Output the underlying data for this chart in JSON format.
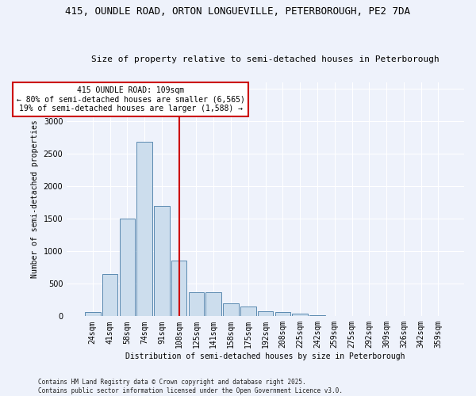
{
  "title_line1": "415, OUNDLE ROAD, ORTON LONGUEVILLE, PETERBOROUGH, PE2 7DA",
  "title_line2": "Size of property relative to semi-detached houses in Peterborough",
  "xlabel": "Distribution of semi-detached houses by size in Peterborough",
  "ylabel": "Number of semi-detached properties",
  "categories": [
    "24sqm",
    "41sqm",
    "58sqm",
    "74sqm",
    "91sqm",
    "108sqm",
    "125sqm",
    "141sqm",
    "158sqm",
    "175sqm",
    "192sqm",
    "208sqm",
    "225sqm",
    "242sqm",
    "259sqm",
    "275sqm",
    "292sqm",
    "309sqm",
    "326sqm",
    "342sqm",
    "359sqm"
  ],
  "values": [
    65,
    650,
    1500,
    2680,
    1700,
    850,
    375,
    370,
    195,
    155,
    80,
    65,
    35,
    20,
    10,
    5,
    3,
    2,
    1,
    0,
    0
  ],
  "bar_color": "#ccdded",
  "bar_edge_color": "#5a8ab0",
  "vline_color": "#cc0000",
  "vline_index": 5,
  "annotation_line1": "415 OUNDLE ROAD: 109sqm",
  "annotation_line2": "← 80% of semi-detached houses are smaller (6,565)",
  "annotation_line3": "19% of semi-detached houses are larger (1,588) →",
  "annotation_box_color": "#ffffff",
  "annotation_box_edge": "#cc0000",
  "footer_text": "Contains HM Land Registry data © Crown copyright and database right 2025.\nContains public sector information licensed under the Open Government Licence v3.0.",
  "ylim_max": 3600,
  "background_color": "#eef2fb",
  "grid_color": "#ffffff",
  "bar_width": 0.9,
  "title_fontsize": 9,
  "subtitle_fontsize": 8,
  "label_fontsize": 7,
  "tick_fontsize": 7,
  "footer_fontsize": 5.5
}
